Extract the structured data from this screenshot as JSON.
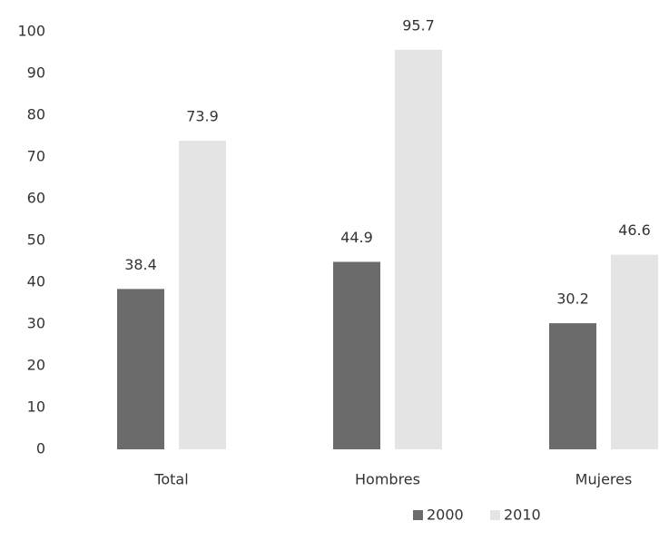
{
  "chart_data": {
    "type": "bar",
    "categories": [
      "Total",
      "Hombres",
      "Mujeres"
    ],
    "series": [
      {
        "name": "2000",
        "color": "#6b6b6b",
        "values": [
          38.4,
          44.9,
          30.2
        ]
      },
      {
        "name": "2010",
        "color": "#e4e4e4",
        "values": [
          73.9,
          95.7,
          46.6
        ]
      }
    ],
    "ylim": [
      0,
      100
    ],
    "yticks": [
      0,
      10,
      20,
      30,
      40,
      50,
      60,
      70,
      80,
      90,
      100
    ],
    "grid": false,
    "legend": "bottom"
  }
}
